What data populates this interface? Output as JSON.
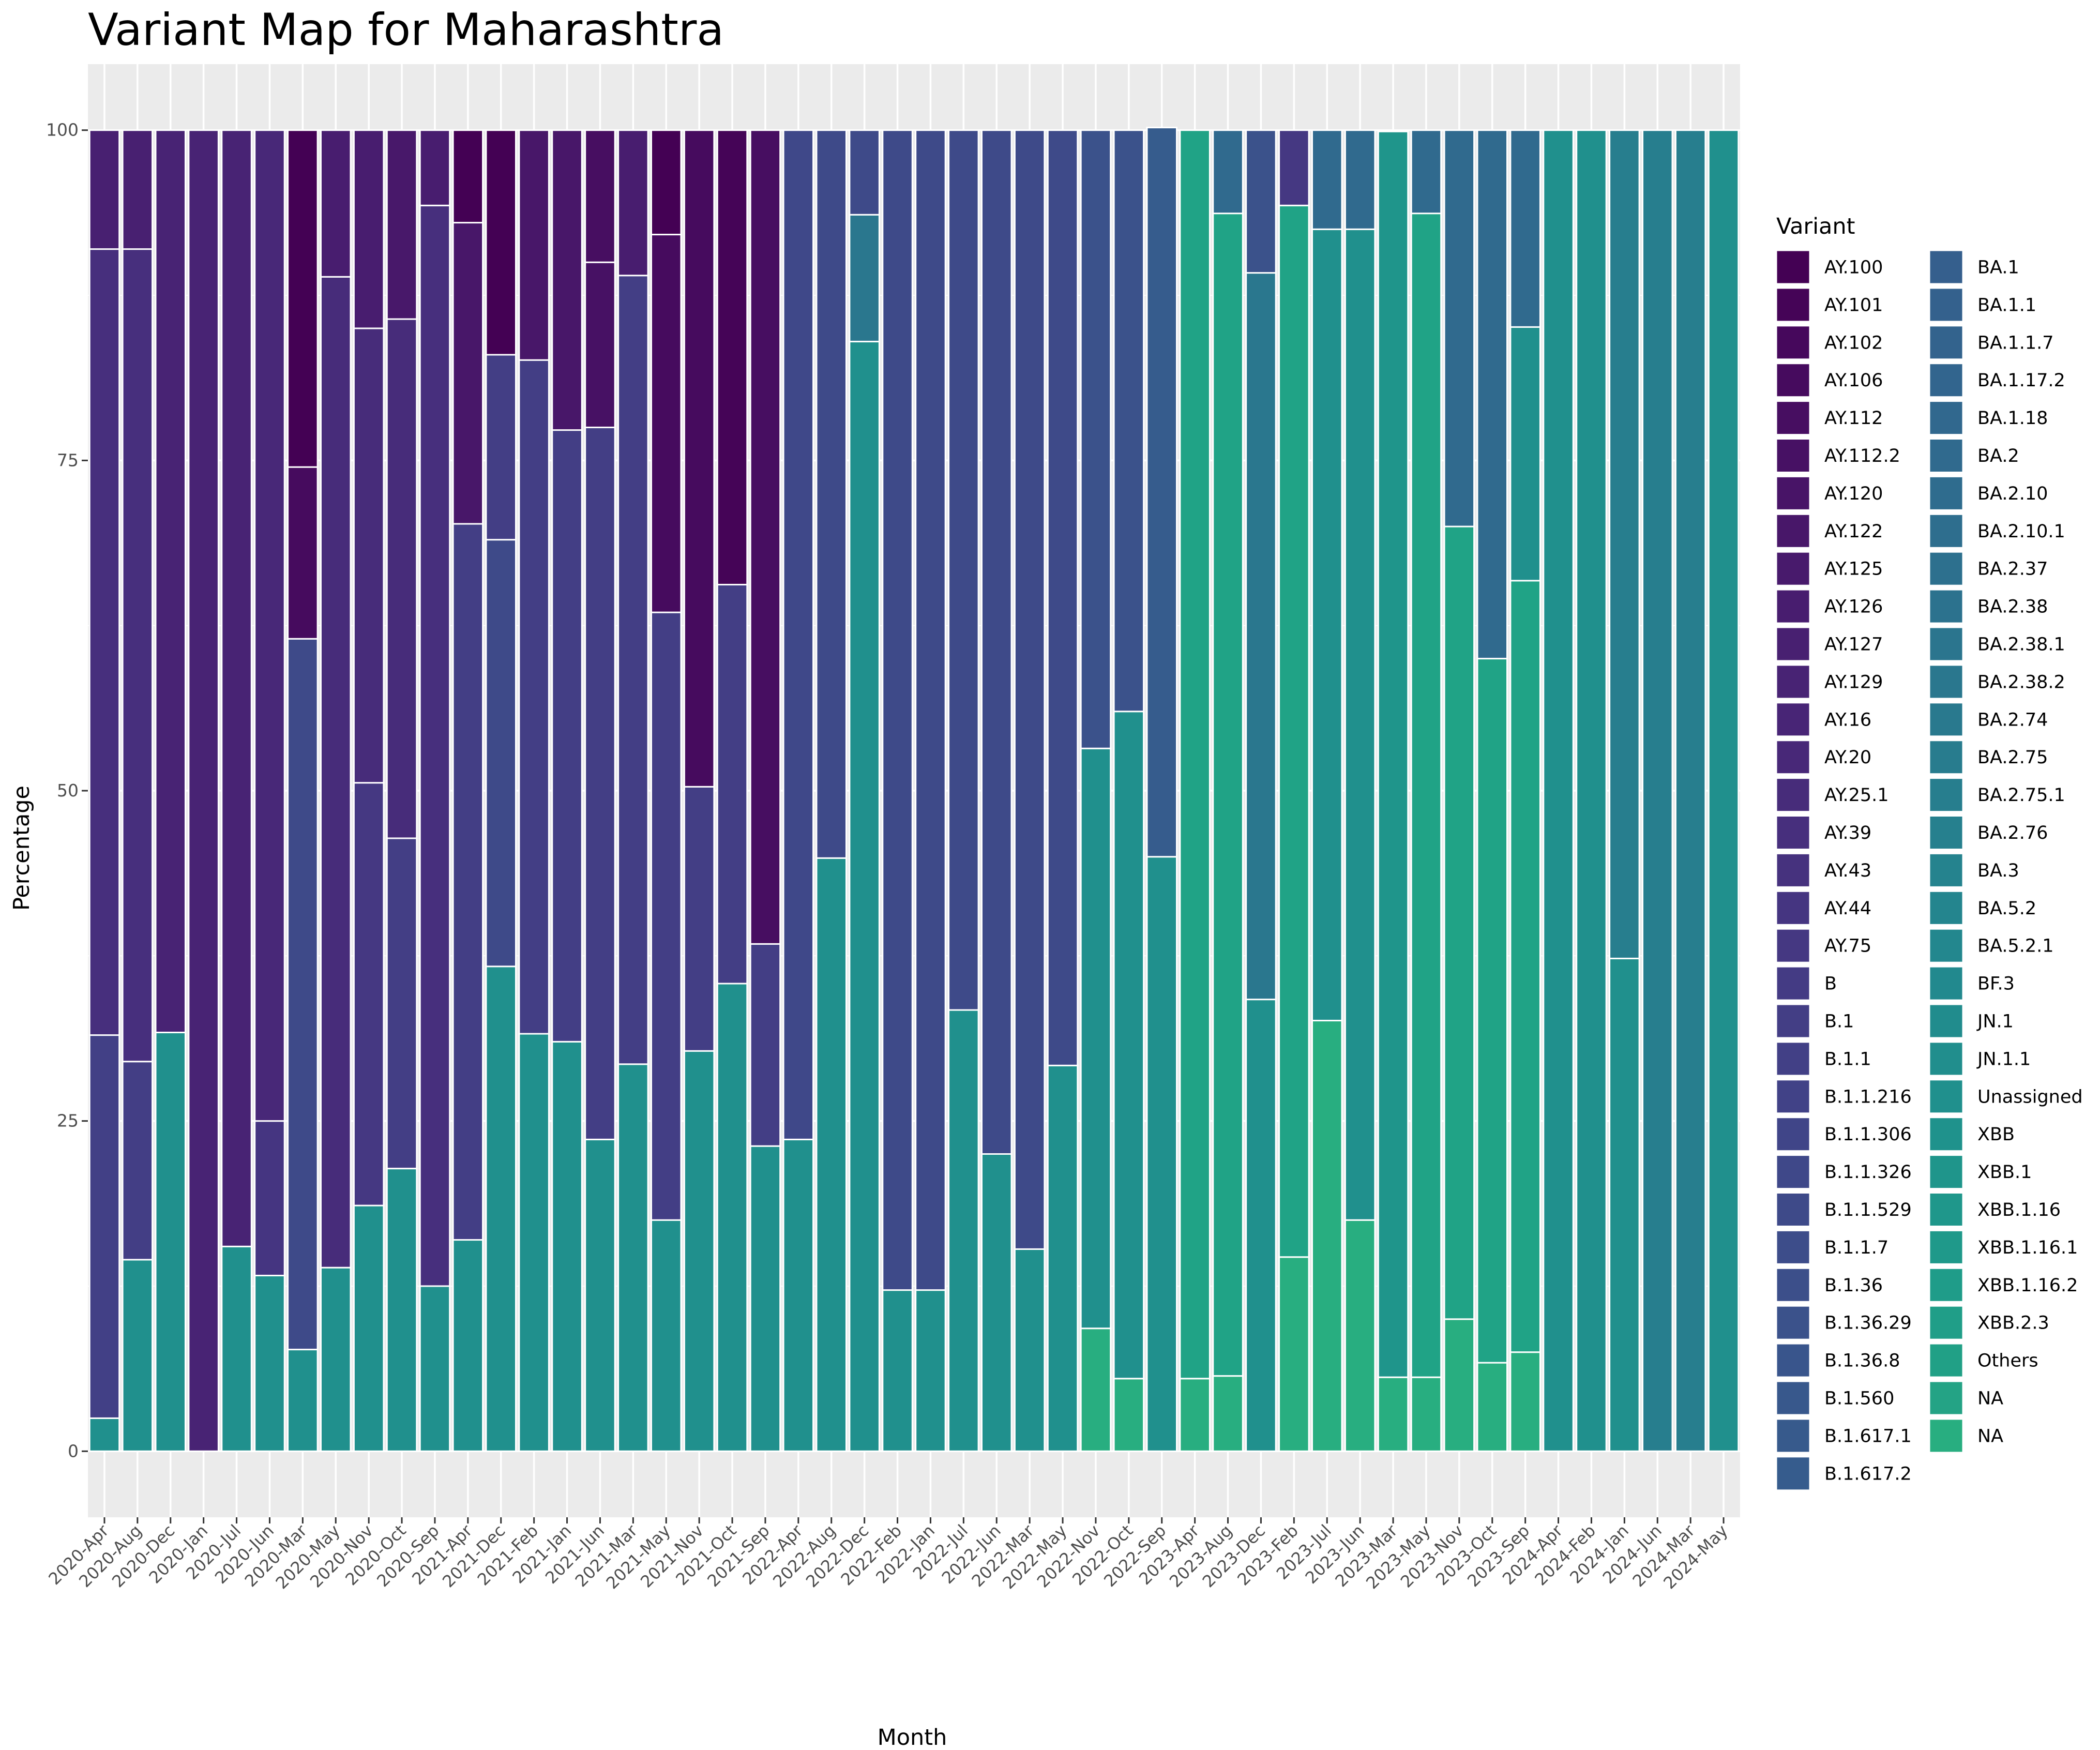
{
  "chart_data": {
    "type": "bar",
    "stacked": true,
    "title": "Variant Map for Maharashtra",
    "xlabel": "Month",
    "ylabel": "Percentage",
    "ylim": [
      -5,
      105
    ],
    "yticks": [
      0,
      25,
      50,
      75,
      100
    ],
    "grid": true,
    "legend_title": "Variant",
    "legend_position": "right",
    "legend": [
      {
        "label": "AY.100",
        "color": "#440154"
      },
      {
        "label": "AY.101",
        "color": "#450457"
      },
      {
        "label": "AY.102",
        "color": "#46085c"
      },
      {
        "label": "AY.106",
        "color": "#460b5e"
      },
      {
        "label": "AY.112",
        "color": "#470e61"
      },
      {
        "label": "AY.112.2",
        "color": "#471164"
      },
      {
        "label": "AY.120",
        "color": "#481467"
      },
      {
        "label": "AY.122",
        "color": "#481769"
      },
      {
        "label": "AY.125",
        "color": "#481a6c"
      },
      {
        "label": "AY.126",
        "color": "#481d6f"
      },
      {
        "label": "AY.127",
        "color": "#482071"
      },
      {
        "label": "AY.129",
        "color": "#482374"
      },
      {
        "label": "AY.16",
        "color": "#482576"
      },
      {
        "label": "AY.20",
        "color": "#482878"
      },
      {
        "label": "AY.25.1",
        "color": "#472c7a"
      },
      {
        "label": "AY.39",
        "color": "#472f7d"
      },
      {
        "label": "AY.43",
        "color": "#46327e"
      },
      {
        "label": "AY.44",
        "color": "#453581"
      },
      {
        "label": "AY.75",
        "color": "#453882"
      },
      {
        "label": "B",
        "color": "#443b84"
      },
      {
        "label": "B.1",
        "color": "#433e85"
      },
      {
        "label": "B.1.1",
        "color": "#424086"
      },
      {
        "label": "B.1.1.216",
        "color": "#414287"
      },
      {
        "label": "B.1.1.306",
        "color": "#404588"
      },
      {
        "label": "B.1.1.326",
        "color": "#3f4889"
      },
      {
        "label": "B.1.1.529",
        "color": "#3e4a89"
      },
      {
        "label": "B.1.1.7",
        "color": "#3d4d8a"
      },
      {
        "label": "B.1.36",
        "color": "#3c4f8a"
      },
      {
        "label": "B.1.36.29",
        "color": "#3b528b"
      },
      {
        "label": "B.1.36.8",
        "color": "#39558c"
      },
      {
        "label": "B.1.560",
        "color": "#38588c"
      },
      {
        "label": "B.1.617.1",
        "color": "#375a8c"
      },
      {
        "label": "B.1.617.2",
        "color": "#365c8d"
      },
      {
        "label": "BA.1",
        "color": "#355f8d"
      },
      {
        "label": "BA.1.1",
        "color": "#34618d"
      },
      {
        "label": "BA.1.1.7",
        "color": "#33638d"
      },
      {
        "label": "BA.1.17.2",
        "color": "#32658e"
      },
      {
        "label": "BA.1.18",
        "color": "#31688e"
      },
      {
        "label": "BA.2",
        "color": "#306a8e"
      },
      {
        "label": "BA.2.10",
        "color": "#2f6c8e"
      },
      {
        "label": "BA.2.10.1",
        "color": "#2e6e8e"
      },
      {
        "label": "BA.2.37",
        "color": "#2d708e"
      },
      {
        "label": "BA.2.38",
        "color": "#2c728e"
      },
      {
        "label": "BA.2.38.1",
        "color": "#2b758e"
      },
      {
        "label": "BA.2.38.2",
        "color": "#2a778e"
      },
      {
        "label": "BA.2.74",
        "color": "#29798e"
      },
      {
        "label": "BA.2.75",
        "color": "#287c8e"
      },
      {
        "label": "BA.2.75.1",
        "color": "#277e8e"
      },
      {
        "label": "BA.2.76",
        "color": "#26808e"
      },
      {
        "label": "BA.3",
        "color": "#25838e"
      },
      {
        "label": "BA.5.2",
        "color": "#24858e"
      },
      {
        "label": "BA.5.2.1",
        "color": "#23878e"
      },
      {
        "label": "BF.3",
        "color": "#22898e"
      },
      {
        "label": "JN.1",
        "color": "#218c8d"
      },
      {
        "label": "JN.1.1",
        "color": "#218e8d"
      },
      {
        "label": "Unassigned",
        "color": "#20908d"
      },
      {
        "label": "XBB",
        "color": "#1f928c"
      },
      {
        "label": "XBB.1",
        "color": "#1f958b"
      },
      {
        "label": "XBB.1.16",
        "color": "#1f978b"
      },
      {
        "label": "XBB.1.16.1",
        "color": "#1f998a"
      },
      {
        "label": "XBB.1.16.2",
        "color": "#1f9c89"
      },
      {
        "label": "XBB.2.3",
        "color": "#209e88"
      },
      {
        "label": "Others",
        "color": "#21a086"
      },
      {
        "label": "NA",
        "color": "#24a385"
      },
      {
        "label": "NA",
        "color": "#28ae80"
      }
    ],
    "categories": [
      "2020-Apr",
      "2020-Aug",
      "2020-Dec",
      "2020-Jan",
      "2020-Jul",
      "2020-Jun",
      "2020-Mar",
      "2020-May",
      "2020-Nov",
      "2020-Oct",
      "2020-Sep",
      "2021-Apr",
      "2021-Dec",
      "2021-Feb",
      "2021-Jan",
      "2021-Jun",
      "2021-Mar",
      "2021-May",
      "2021-Nov",
      "2021-Oct",
      "2021-Sep",
      "2022-Apr",
      "2022-Aug",
      "2022-Dec",
      "2022-Feb",
      "2022-Jan",
      "2022-Jul",
      "2022-Jun",
      "2022-Mar",
      "2022-May",
      "2022-Nov",
      "2022-Oct",
      "2022-Sep",
      "2023-Apr",
      "2023-Aug",
      "2023-Dec",
      "2023-Feb",
      "2023-Jul",
      "2023-Jun",
      "2023-Mar",
      "2023-May",
      "2023-Nov",
      "2023-Oct",
      "2023-Sep",
      "2024-Apr",
      "2024-Feb",
      "2024-Jan",
      "2024-Jun",
      "2024-Mar",
      "2024-May"
    ],
    "stacks": [
      [
        {
          "v": 2.5,
          "c": "#20908d"
        },
        {
          "v": 29,
          "c": "#424086"
        },
        {
          "v": 59.5,
          "c": "#472f7d"
        },
        {
          "v": 9,
          "c": "#482071"
        }
      ],
      [
        {
          "v": 14.5,
          "c": "#20908d"
        },
        {
          "v": 15,
          "c": "#433e85"
        },
        {
          "v": 61.5,
          "c": "#472f7d"
        },
        {
          "v": 9,
          "c": "#482071"
        }
      ],
      [
        {
          "v": 31.7,
          "c": "#20908d"
        },
        {
          "v": 68.3,
          "c": "#482374"
        }
      ],
      [
        {
          "v": 100,
          "c": "#482374"
        }
      ],
      [
        {
          "v": 15.5,
          "c": "#20908d"
        },
        {
          "v": 84.5,
          "c": "#482374"
        }
      ],
      [
        {
          "v": 13.3,
          "c": "#20908d"
        },
        {
          "v": 11.7,
          "c": "#453581"
        },
        {
          "v": 75,
          "c": "#482878"
        }
      ],
      [
        {
          "v": 7.7,
          "c": "#20908d"
        },
        {
          "v": 53.8,
          "c": "#3e4a89"
        },
        {
          "v": 13,
          "c": "#460b5e"
        },
        {
          "v": 25.5,
          "c": "#440154"
        }
      ],
      [
        {
          "v": 13.9,
          "c": "#20908d"
        },
        {
          "v": 75,
          "c": "#472c7a"
        },
        {
          "v": 11.1,
          "c": "#481d6f"
        }
      ],
      [
        {
          "v": 18.6,
          "c": "#20908d"
        },
        {
          "v": 32,
          "c": "#453882"
        },
        {
          "v": 34.4,
          "c": "#472c7a"
        },
        {
          "v": 15,
          "c": "#481d6f"
        }
      ],
      [
        {
          "v": 21.4,
          "c": "#20908d"
        },
        {
          "v": 25,
          "c": "#433e85"
        },
        {
          "v": 39.3,
          "c": "#472c7a"
        },
        {
          "v": 14.3,
          "c": "#48186a"
        }
      ],
      [
        {
          "v": 12.5,
          "c": "#20908d"
        },
        {
          "v": 81.8,
          "c": "#472f7d"
        },
        {
          "v": 5.7,
          "c": "#481d6f"
        }
      ],
      [
        {
          "v": 16,
          "c": "#20908d"
        },
        {
          "v": 54.2,
          "c": "#433e85"
        },
        {
          "v": 22.8,
          "c": "#481769"
        },
        {
          "v": 7,
          "c": "#440154"
        }
      ],
      [
        {
          "v": 36.7,
          "c": "#20908d"
        },
        {
          "v": 32.3,
          "c": "#3e4a89"
        },
        {
          "v": 14,
          "c": "#433e85"
        },
        {
          "v": 17,
          "c": "#440154"
        }
      ],
      [
        {
          "v": 31.6,
          "c": "#20908d"
        },
        {
          "v": 51,
          "c": "#433e85"
        },
        {
          "v": 17.4,
          "c": "#481769"
        }
      ],
      [
        {
          "v": 31,
          "c": "#20908d"
        },
        {
          "v": 46.3,
          "c": "#433e85"
        },
        {
          "v": 22.7,
          "c": "#481769"
        }
      ],
      [
        {
          "v": 23.6,
          "c": "#20908d"
        },
        {
          "v": 53.9,
          "c": "#433e85"
        },
        {
          "v": 12.5,
          "c": "#471164"
        },
        {
          "v": 10,
          "c": "#470e61"
        }
      ],
      [
        {
          "v": 29.3,
          "c": "#20908d"
        },
        {
          "v": 59.7,
          "c": "#433e85"
        },
        {
          "v": 11,
          "c": "#481d6f"
        }
      ],
      [
        {
          "v": 17.5,
          "c": "#20908d"
        },
        {
          "v": 46,
          "c": "#433e85"
        },
        {
          "v": 28.6,
          "c": "#460b5e"
        },
        {
          "v": 7.9,
          "c": "#440154"
        }
      ],
      [
        {
          "v": 30.3,
          "c": "#20908d"
        },
        {
          "v": 20,
          "c": "#433e85"
        },
        {
          "v": 49.7,
          "c": "#460b5e"
        }
      ],
      [
        {
          "v": 35.4,
          "c": "#20908d"
        },
        {
          "v": 30.2,
          "c": "#433e85"
        },
        {
          "v": 34.4,
          "c": "#450457"
        }
      ],
      [
        {
          "v": 23.1,
          "c": "#20908d"
        },
        {
          "v": 15.3,
          "c": "#433e85"
        },
        {
          "v": 61.6,
          "c": "#470e61"
        }
      ],
      [
        {
          "v": 23.6,
          "c": "#20908d"
        },
        {
          "v": 76.4,
          "c": "#3f4889"
        }
      ],
      [
        {
          "v": 44.9,
          "c": "#20908d"
        },
        {
          "v": 55.1,
          "c": "#3e4a89"
        }
      ],
      [
        {
          "v": 84,
          "c": "#20908d"
        },
        {
          "v": 9.6,
          "c": "#2a778e"
        },
        {
          "v": 6.4,
          "c": "#3e4a89"
        }
      ],
      [
        {
          "v": 12.2,
          "c": "#20908d"
        },
        {
          "v": 87.8,
          "c": "#3e4a89"
        }
      ],
      [
        {
          "v": 12.2,
          "c": "#20908d"
        },
        {
          "v": 87.8,
          "c": "#3e4a89"
        }
      ],
      [
        {
          "v": 33.4,
          "c": "#20908d"
        },
        {
          "v": 66.6,
          "c": "#3e4a89"
        }
      ],
      [
        {
          "v": 22.5,
          "c": "#20908d"
        },
        {
          "v": 77.5,
          "c": "#3e4a89"
        }
      ],
      [
        {
          "v": 15.3,
          "c": "#20908d"
        },
        {
          "v": 84.7,
          "c": "#3e4a89"
        }
      ],
      [
        {
          "v": 29.2,
          "c": "#20908d"
        },
        {
          "v": 70.8,
          "c": "#3e4a89"
        }
      ],
      [
        {
          "v": 9.3,
          "c": "#28ae80"
        },
        {
          "v": 43.9,
          "c": "#20908d"
        },
        {
          "v": 46.8,
          "c": "#3b528b"
        }
      ],
      [
        {
          "v": 5.5,
          "c": "#28ae80"
        },
        {
          "v": 50.5,
          "c": "#20908d"
        },
        {
          "v": 44,
          "c": "#3b528b"
        }
      ],
      [
        {
          "v": 45,
          "c": "#20908d"
        },
        {
          "v": 55.2,
          "c": "#365c8d"
        }
      ],
      [
        {
          "v": 5.5,
          "c": "#28ae80"
        },
        {
          "v": 94.5,
          "c": "#20a386"
        }
      ],
      [
        {
          "v": 5.7,
          "c": "#28ae80"
        },
        {
          "v": 88,
          "c": "#20a386"
        },
        {
          "v": 6.3,
          "c": "#306a8e"
        }
      ],
      [
        {
          "v": 34.2,
          "c": "#20908d"
        },
        {
          "v": 55,
          "c": "#2a778e"
        },
        {
          "v": 10.8,
          "c": "#3b528b"
        }
      ],
      [
        {
          "v": 14.7,
          "c": "#28ae80"
        },
        {
          "v": 79.6,
          "c": "#20a386"
        },
        {
          "v": 5.7,
          "c": "#453882"
        }
      ],
      [
        {
          "v": 32.6,
          "c": "#28ae80"
        },
        {
          "v": 59.9,
          "c": "#20908d"
        },
        {
          "v": 7.5,
          "c": "#306a8e"
        }
      ],
      [
        {
          "v": 17.5,
          "c": "#28ae80"
        },
        {
          "v": 75,
          "c": "#20908d"
        },
        {
          "v": 7.5,
          "c": "#306a8e"
        }
      ],
      [
        {
          "v": 5.6,
          "c": "#28ae80"
        },
        {
          "v": 94.3,
          "c": "#1f958b"
        }
      ],
      [
        {
          "v": 5.6,
          "c": "#28ae80"
        },
        {
          "v": 88.1,
          "c": "#20a386"
        },
        {
          "v": 6.3,
          "c": "#306a8e"
        }
      ],
      [
        {
          "v": 10,
          "c": "#28ae80"
        },
        {
          "v": 60,
          "c": "#20a386"
        },
        {
          "v": 30,
          "c": "#306a8e"
        }
      ],
      [
        {
          "v": 6.7,
          "c": "#28ae80"
        },
        {
          "v": 53.3,
          "c": "#20a386"
        },
        {
          "v": 40,
          "c": "#306a8e"
        }
      ],
      [
        {
          "v": 7.5,
          "c": "#28ae80"
        },
        {
          "v": 58.4,
          "c": "#20a386"
        },
        {
          "v": 19.2,
          "c": "#20908d"
        },
        {
          "v": 14.9,
          "c": "#306a8e"
        }
      ],
      [
        {
          "v": 100,
          "c": "#20908d"
        }
      ],
      [
        {
          "v": 100,
          "c": "#20908d"
        }
      ],
      [
        {
          "v": 37.3,
          "c": "#20908d"
        },
        {
          "v": 62.7,
          "c": "#277e8e"
        }
      ],
      [
        {
          "v": 100,
          "c": "#277e8e"
        }
      ],
      [
        {
          "v": 100,
          "c": "#277e8e"
        }
      ],
      [
        {
          "v": 100,
          "c": "#20908d"
        }
      ]
    ]
  }
}
